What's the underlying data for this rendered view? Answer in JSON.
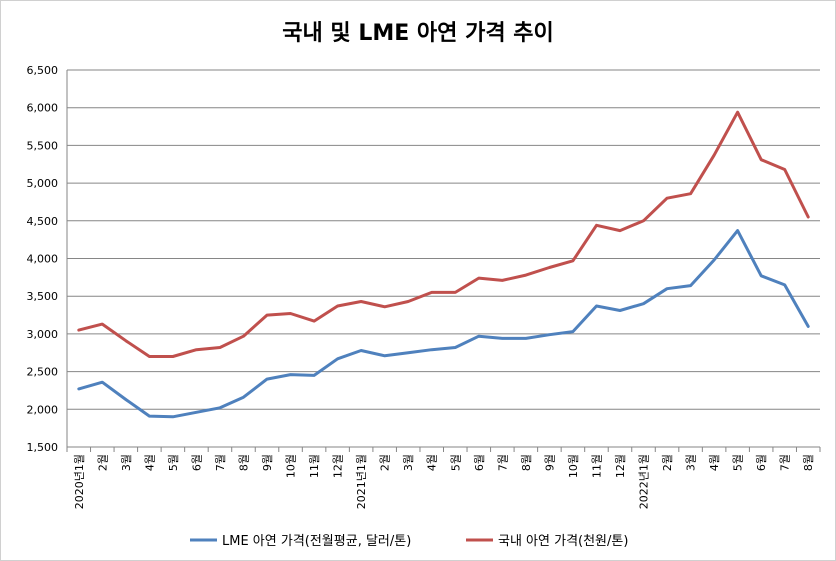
{
  "chart_data": {
    "type": "line",
    "title": "국내 및 LME 아연 가격 추이",
    "xlabel": "",
    "ylabel": "",
    "ylim": [
      1500,
      6500
    ],
    "yticks": [
      "1,500",
      "2,000",
      "2,500",
      "3,000",
      "3,500",
      "4,000",
      "4,500",
      "5,000",
      "5,500",
      "6,000",
      "6,500"
    ],
    "grid": true,
    "legend": "bottom",
    "categories": [
      "2020년1월",
      "2월",
      "3월",
      "4월",
      "5월",
      "6월",
      "7월",
      "8월",
      "9월",
      "10월",
      "11월",
      "12월",
      "2021년1월",
      "2월",
      "3월",
      "4월",
      "5월",
      "6월",
      "7월",
      "8월",
      "9월",
      "10월",
      "11월",
      "12월",
      "2022년1월",
      "2월",
      "3월",
      "4월",
      "5월",
      "6월",
      "7월",
      "8월"
    ],
    "series": [
      {
        "name": "LME 아연 가격(전월평균, 달러/톤)",
        "color": "#4f81bd",
        "values": [
          2270,
          2360,
          2130,
          1910,
          1900,
          1960,
          2020,
          2160,
          2400,
          2460,
          2450,
          2670,
          2780,
          2710,
          2750,
          2790,
          2820,
          2970,
          2940,
          2940,
          2990,
          3030,
          3370,
          3310,
          3400,
          3600,
          3640,
          3980,
          4370,
          3770,
          3650,
          3100
        ]
      },
      {
        "name": "국내 아연 가격(천원/톤)",
        "color": "#c0504d",
        "values": [
          3050,
          3130,
          2910,
          2700,
          2700,
          2790,
          2820,
          2970,
          3250,
          3270,
          3170,
          3370,
          3430,
          3360,
          3430,
          3550,
          3550,
          3740,
          3710,
          3780,
          3880,
          3970,
          4440,
          4370,
          4500,
          4800,
          4860,
          5370,
          5940,
          5310,
          5180,
          4550
        ]
      }
    ]
  }
}
